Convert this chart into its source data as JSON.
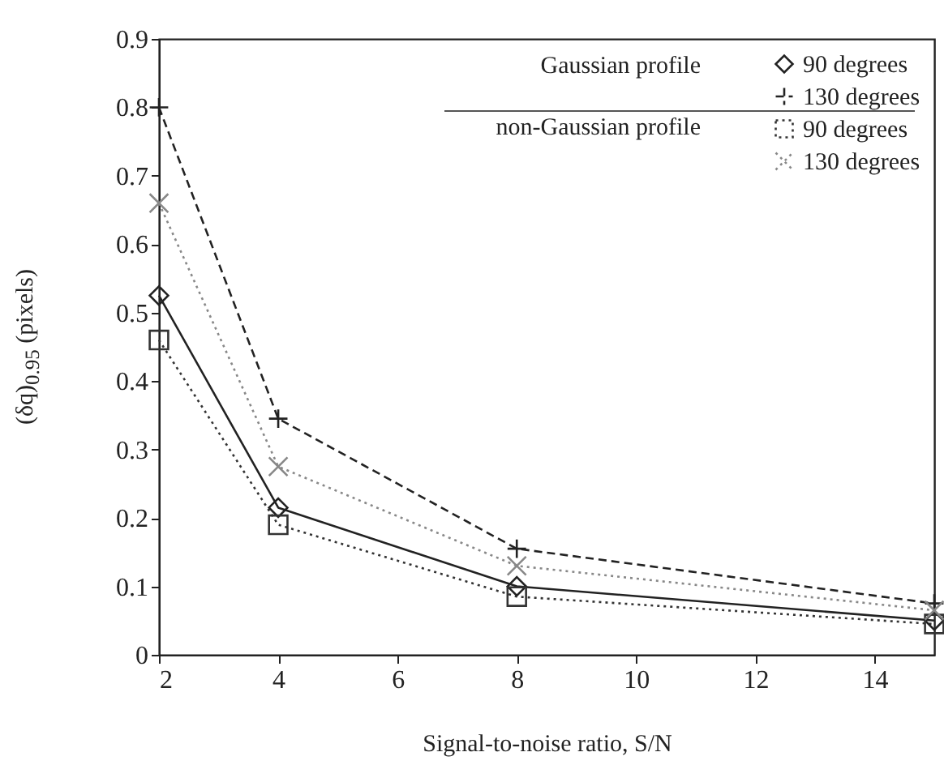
{
  "chart_data": {
    "type": "line",
    "xlabel": "Signal-to-noise ratio, S/N",
    "ylabel": "(δq)$_{0.95}$ (pixels)",
    "x": [
      2,
      4,
      8,
      15
    ],
    "xlim": [
      2,
      15
    ],
    "xticks": [
      2,
      4,
      6,
      8,
      10,
      12,
      14
    ],
    "ylim": [
      0,
      0.9
    ],
    "yticks": [
      {
        "value": 0,
        "label": "0"
      },
      0.1,
      0.2,
      0.3,
      0.4,
      0.5,
      0.6,
      0.7,
      0.8,
      0.9
    ],
    "grid": false,
    "legend": "top right",
    "annotations": [
      "Gaussian profile",
      "non-Gaussian profile"
    ],
    "series": [
      {
        "name": "90 degrees",
        "color": "#222222",
        "marker": "diamond",
        "line_style": "solid",
        "values": [
          0.525,
          0.215,
          0.1,
          0.05
        ]
      },
      {
        "name": "130 degrees",
        "color": "#222222",
        "marker": "plus",
        "line_style": "dashed",
        "values": [
          0.8,
          0.345,
          0.155,
          0.075
        ]
      },
      {
        "name": "90 degrees",
        "color": "#333333",
        "marker": "square",
        "line_style": "dotted",
        "values": [
          0.46,
          0.19,
          0.085,
          0.045
        ]
      },
      {
        "name": "130 degrees",
        "color": "#888888",
        "marker": "cross",
        "line_style": "dotted",
        "values": [
          0.66,
          0.275,
          0.13,
          0.065
        ]
      }
    ]
  }
}
